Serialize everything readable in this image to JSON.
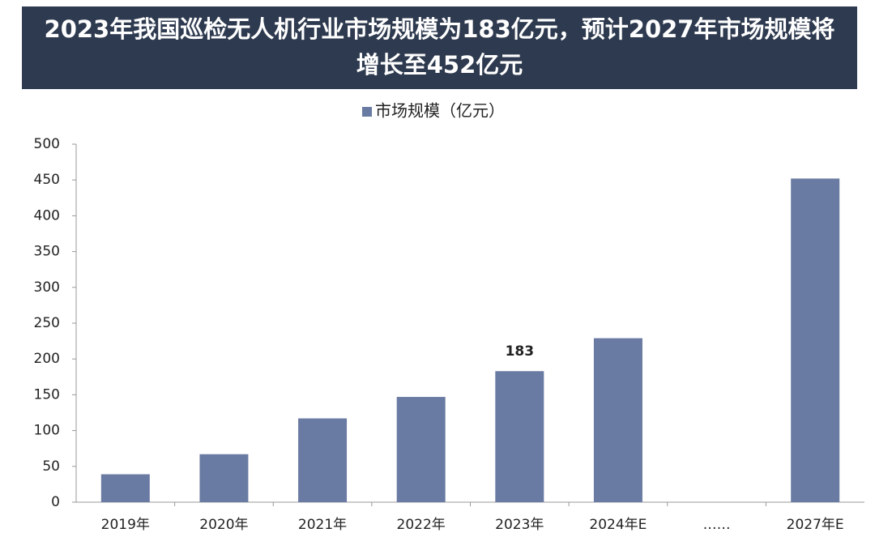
{
  "chart_data": {
    "type": "bar",
    "title": "2023年我国巡检无人机行业市场规模为183亿元，预计2027年市场规模将增长至452亿元",
    "categories": [
      "2019年",
      "2020年",
      "2021年",
      "2022年",
      "2023年",
      "2024年E",
      "……",
      "2027年E"
    ],
    "series": [
      {
        "name": "市场规模（亿元）",
        "color": "#6a7ba3",
        "values": [
          39,
          67,
          117,
          147,
          183,
          229,
          null,
          452
        ],
        "value_labels": [
          null,
          null,
          null,
          null,
          "183",
          null,
          null,
          null
        ]
      }
    ],
    "ylim": [
      0,
      500
    ],
    "yticks": [
      0,
      50,
      100,
      150,
      200,
      250,
      300,
      350,
      400,
      450,
      500
    ],
    "grid": false,
    "legend": "top"
  }
}
